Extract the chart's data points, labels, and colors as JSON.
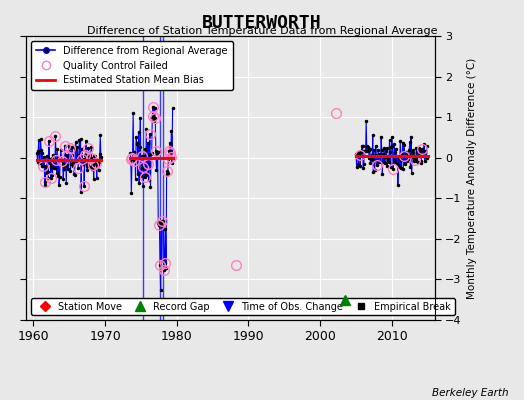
{
  "title": "BUTTERWORTH",
  "subtitle": "Difference of Station Temperature Data from Regional Average",
  "ylabel": "Monthly Temperature Anomaly Difference (°C)",
  "xlabel_bottom": "Berkeley Earth",
  "ylim": [
    -4,
    3
  ],
  "xlim": [
    1959,
    2016
  ],
  "xticks": [
    1960,
    1970,
    1980,
    1990,
    2000,
    2010
  ],
  "yticks": [
    -4,
    -3,
    -2,
    -1,
    0,
    1,
    2,
    3
  ],
  "bg_color": "#e8e8e8",
  "plot_bg_color": "#e8e8e8",
  "grid_color": "white",
  "seg1_xstart": 1960.5,
  "seg1_xend": 1969.5,
  "seg1_mean": -0.05,
  "seg2_xstart": 1973.5,
  "seg2_xend": 1979.5,
  "seg2_mean": 0.0,
  "seg3_xstart": 2005.0,
  "seg3_xend": 2015.0,
  "seg3_mean": 0.05,
  "vertical_lines": [
    1975.3,
    1977.7,
    1978.1
  ],
  "record_gap_x": 2003.5,
  "record_gap_y": -3.5,
  "isolated_qc_x": 1988.3,
  "isolated_qc_y": -2.65,
  "isolated_qc2_x": 2002.2,
  "isolated_qc2_y": 1.1,
  "qc_color": "#ff80c0",
  "line_color": "#0000ff",
  "dot_color": "#000000",
  "bias_color": "#ff0000"
}
